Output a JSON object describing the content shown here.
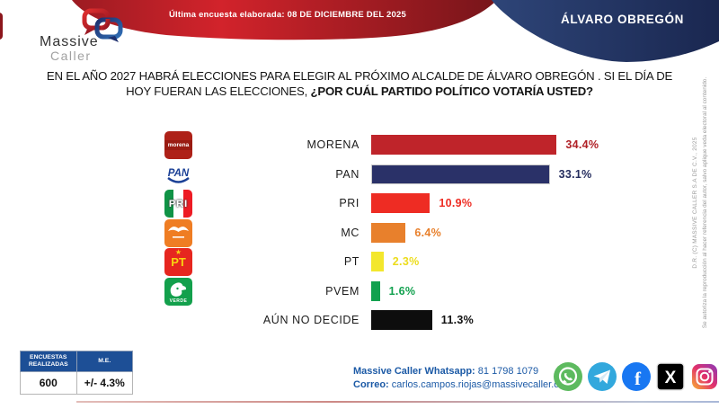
{
  "header": {
    "banner_red_text": "Última encuesta elaborada: 08 DE DICIEMBRE DEL 2025",
    "banner_blue_text": "ÁLVARO OBREGÓN",
    "logo_line1": "Massive",
    "logo_line2": "Caller"
  },
  "title": {
    "line1": "EN EL AÑO 2027 HABRÁ ELECCIONES PARA ELEGIR AL PRÓXIMO ALCALDE DE ÁLVARO OBREGÓN . SI EL DÍA DE",
    "line2_regular": "HOY FUERAN LAS ELECCIONES, ",
    "line2_bold": "¿POR CUÁL PARTIDO POLÍTICO VOTARÍA USTED?"
  },
  "chart_data": {
    "type": "bar",
    "orientation": "horizontal",
    "categories": [
      "MORENA",
      "PAN",
      "PRI",
      "MC",
      "PT",
      "PVEM",
      "AÚN NO DECIDE"
    ],
    "values": [
      34.4,
      33.1,
      10.9,
      6.4,
      2.3,
      1.6,
      11.3
    ],
    "value_labels": [
      "34.4%",
      "33.1%",
      "10.9%",
      "6.4%",
      "2.3%",
      "1.6%",
      "11.3%"
    ],
    "bar_colors": [
      "#bf242a",
      "#2a3168",
      "#ee2c23",
      "#e8802c",
      "#f3e72d",
      "#12a14f",
      "#0d0d0d"
    ],
    "label_colors": [
      "#b02026",
      "#252d5e",
      "#ee2c23",
      "#e8802c",
      "#ecdc1c",
      "#12a14f",
      "#111111"
    ],
    "party_logos": [
      "morena",
      "pan",
      "pri",
      "mc",
      "pt",
      "pvem",
      null
    ],
    "xlim": [
      0,
      40
    ],
    "grid": false,
    "legend": false,
    "title": ""
  },
  "stats_table": {
    "headers": [
      "ENCUESTAS REALIZADAS",
      "M.E."
    ],
    "values": [
      "600",
      "+/- 4.3%"
    ]
  },
  "contact": {
    "whatsapp_label": "Massive Caller Whatsapp:",
    "whatsapp_value": " 81 1798 1079",
    "email_label": "Correo:",
    "email_value": " carlos.campos.riojas@massivecaller.com"
  },
  "social_icons": [
    "whatsapp-icon",
    "telegram-icon",
    "facebook-icon",
    "x-icon",
    "instagram-icon"
  ],
  "legal": {
    "line1": "D.R. (C) MASSIVE CALLER S.A DE C.V., 2025",
    "line2": "Se autoriza la reproducción al hacer referencia del autor, salvo aplique veda electoral al contenido."
  },
  "colors": {
    "banner_red_start": "#9c1b22",
    "banner_red_mid": "#d2232b",
    "banner_red_end": "#77151a",
    "banner_blue_start": "#2e4578",
    "banner_blue_end": "#1a2750",
    "table_header_bg": "#1d4f96",
    "contact_blue": "#1c5aa6"
  }
}
